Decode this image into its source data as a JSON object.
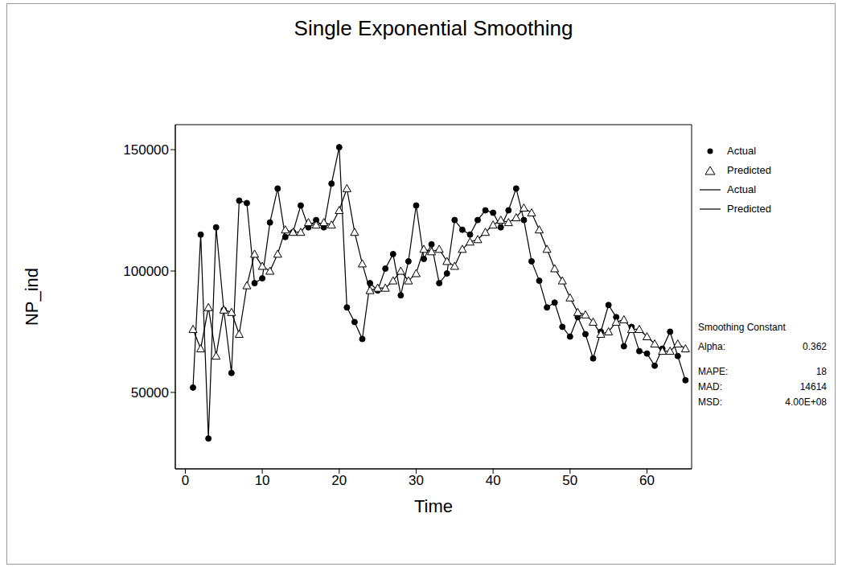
{
  "chart_data": {
    "type": "line",
    "title": "Single Exponential Smoothing",
    "x_label": "Time",
    "y_label": "NP_ind",
    "x": [
      1,
      2,
      3,
      4,
      5,
      6,
      7,
      8,
      9,
      10,
      11,
      12,
      13,
      14,
      15,
      16,
      17,
      18,
      19,
      20,
      21,
      22,
      23,
      24,
      25,
      26,
      27,
      28,
      29,
      30,
      31,
      32,
      33,
      34,
      35,
      36,
      37,
      38,
      39,
      40,
      41,
      42,
      43,
      44,
      45,
      46,
      47,
      48,
      49,
      50,
      51,
      52,
      53,
      54,
      55,
      56,
      57,
      58,
      59,
      60,
      61,
      62,
      63,
      64,
      65
    ],
    "series": [
      {
        "name": "Actual",
        "color": "#000000",
        "marker": "circle",
        "line_style": "solid",
        "values": [
          52000,
          115000,
          31000,
          118000,
          84000,
          58000,
          129000,
          128000,
          95000,
          97000,
          120000,
          134000,
          114000,
          116000,
          127000,
          118000,
          121000,
          118000,
          136000,
          151000,
          85000,
          79000,
          72000,
          95000,
          92000,
          101000,
          107000,
          90000,
          104000,
          127000,
          105000,
          111000,
          95000,
          99000,
          121000,
          117000,
          115000,
          121000,
          125000,
          124000,
          118000,
          125000,
          134000,
          121000,
          104000,
          96000,
          85000,
          87000,
          77000,
          73000,
          81000,
          74000,
          64000,
          75000,
          86000,
          81000,
          69000,
          77000,
          67000,
          66000,
          61000,
          68000,
          75000,
          65000,
          55000
        ]
      },
      {
        "name": "Predicted",
        "color": "#000000",
        "marker": "triangle",
        "line_style": "solid",
        "values": [
          76000,
          68000,
          85000,
          65000,
          84000,
          83000,
          74000,
          94000,
          107000,
          102000,
          100000,
          107000,
          117000,
          116000,
          116000,
          120000,
          119000,
          120000,
          119000,
          125000,
          134000,
          116000,
          103000,
          92000,
          93000,
          93000,
          96000,
          100000,
          96000,
          99000,
          109000,
          108000,
          109000,
          104000,
          102000,
          109000,
          112000,
          113000,
          116000,
          119000,
          121000,
          120000,
          122000,
          126000,
          124000,
          117000,
          109000,
          101000,
          96000,
          89000,
          83000,
          82000,
          79000,
          74000,
          75000,
          79000,
          80000,
          76000,
          76000,
          73000,
          70000,
          67000,
          67000,
          70000,
          68000
        ]
      }
    ],
    "xlim": [
      -1.3,
      65.8
    ],
    "xticks": [
      0,
      10,
      20,
      30,
      40,
      50,
      60
    ],
    "ylim": [
      18500,
      160300
    ],
    "yticks": [
      50000,
      100000,
      150000
    ],
    "legend": "right",
    "stats_heading": "Smoothing Constant",
    "stats": [
      {
        "label": "Alpha:",
        "value": 0.362
      },
      {
        "label": "MAPE:",
        "value": 18
      },
      {
        "label": "MAD:",
        "value": 14614
      },
      {
        "label": "MSD:",
        "value": 400000000,
        "value_label": "4.00E+08"
      }
    ]
  }
}
